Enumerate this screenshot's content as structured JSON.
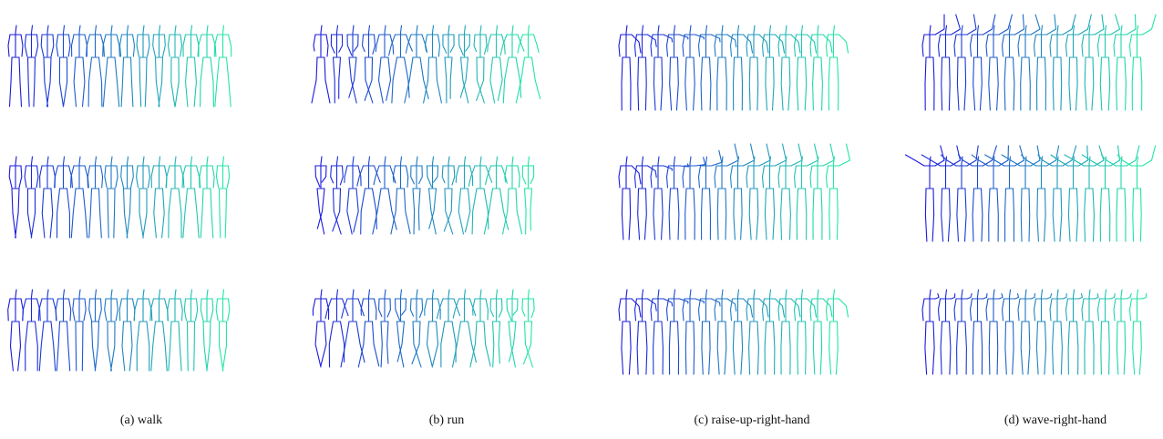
{
  "figure": {
    "palette": {
      "start_color": "#1a1adf",
      "end_color": "#20e6a6"
    },
    "frames_per_row": 14,
    "rows_per_panel": 3,
    "panels": [
      {
        "id": "walk",
        "caption": "(a) walk",
        "motion": "walk"
      },
      {
        "id": "run",
        "caption": "(b) run",
        "motion": "run"
      },
      {
        "id": "raise",
        "caption": "(c) raise-up-right-hand",
        "motion": "raise-up-right-hand"
      },
      {
        "id": "wave",
        "caption": "(d) wave-right-hand",
        "motion": "wave-right-hand"
      }
    ]
  }
}
